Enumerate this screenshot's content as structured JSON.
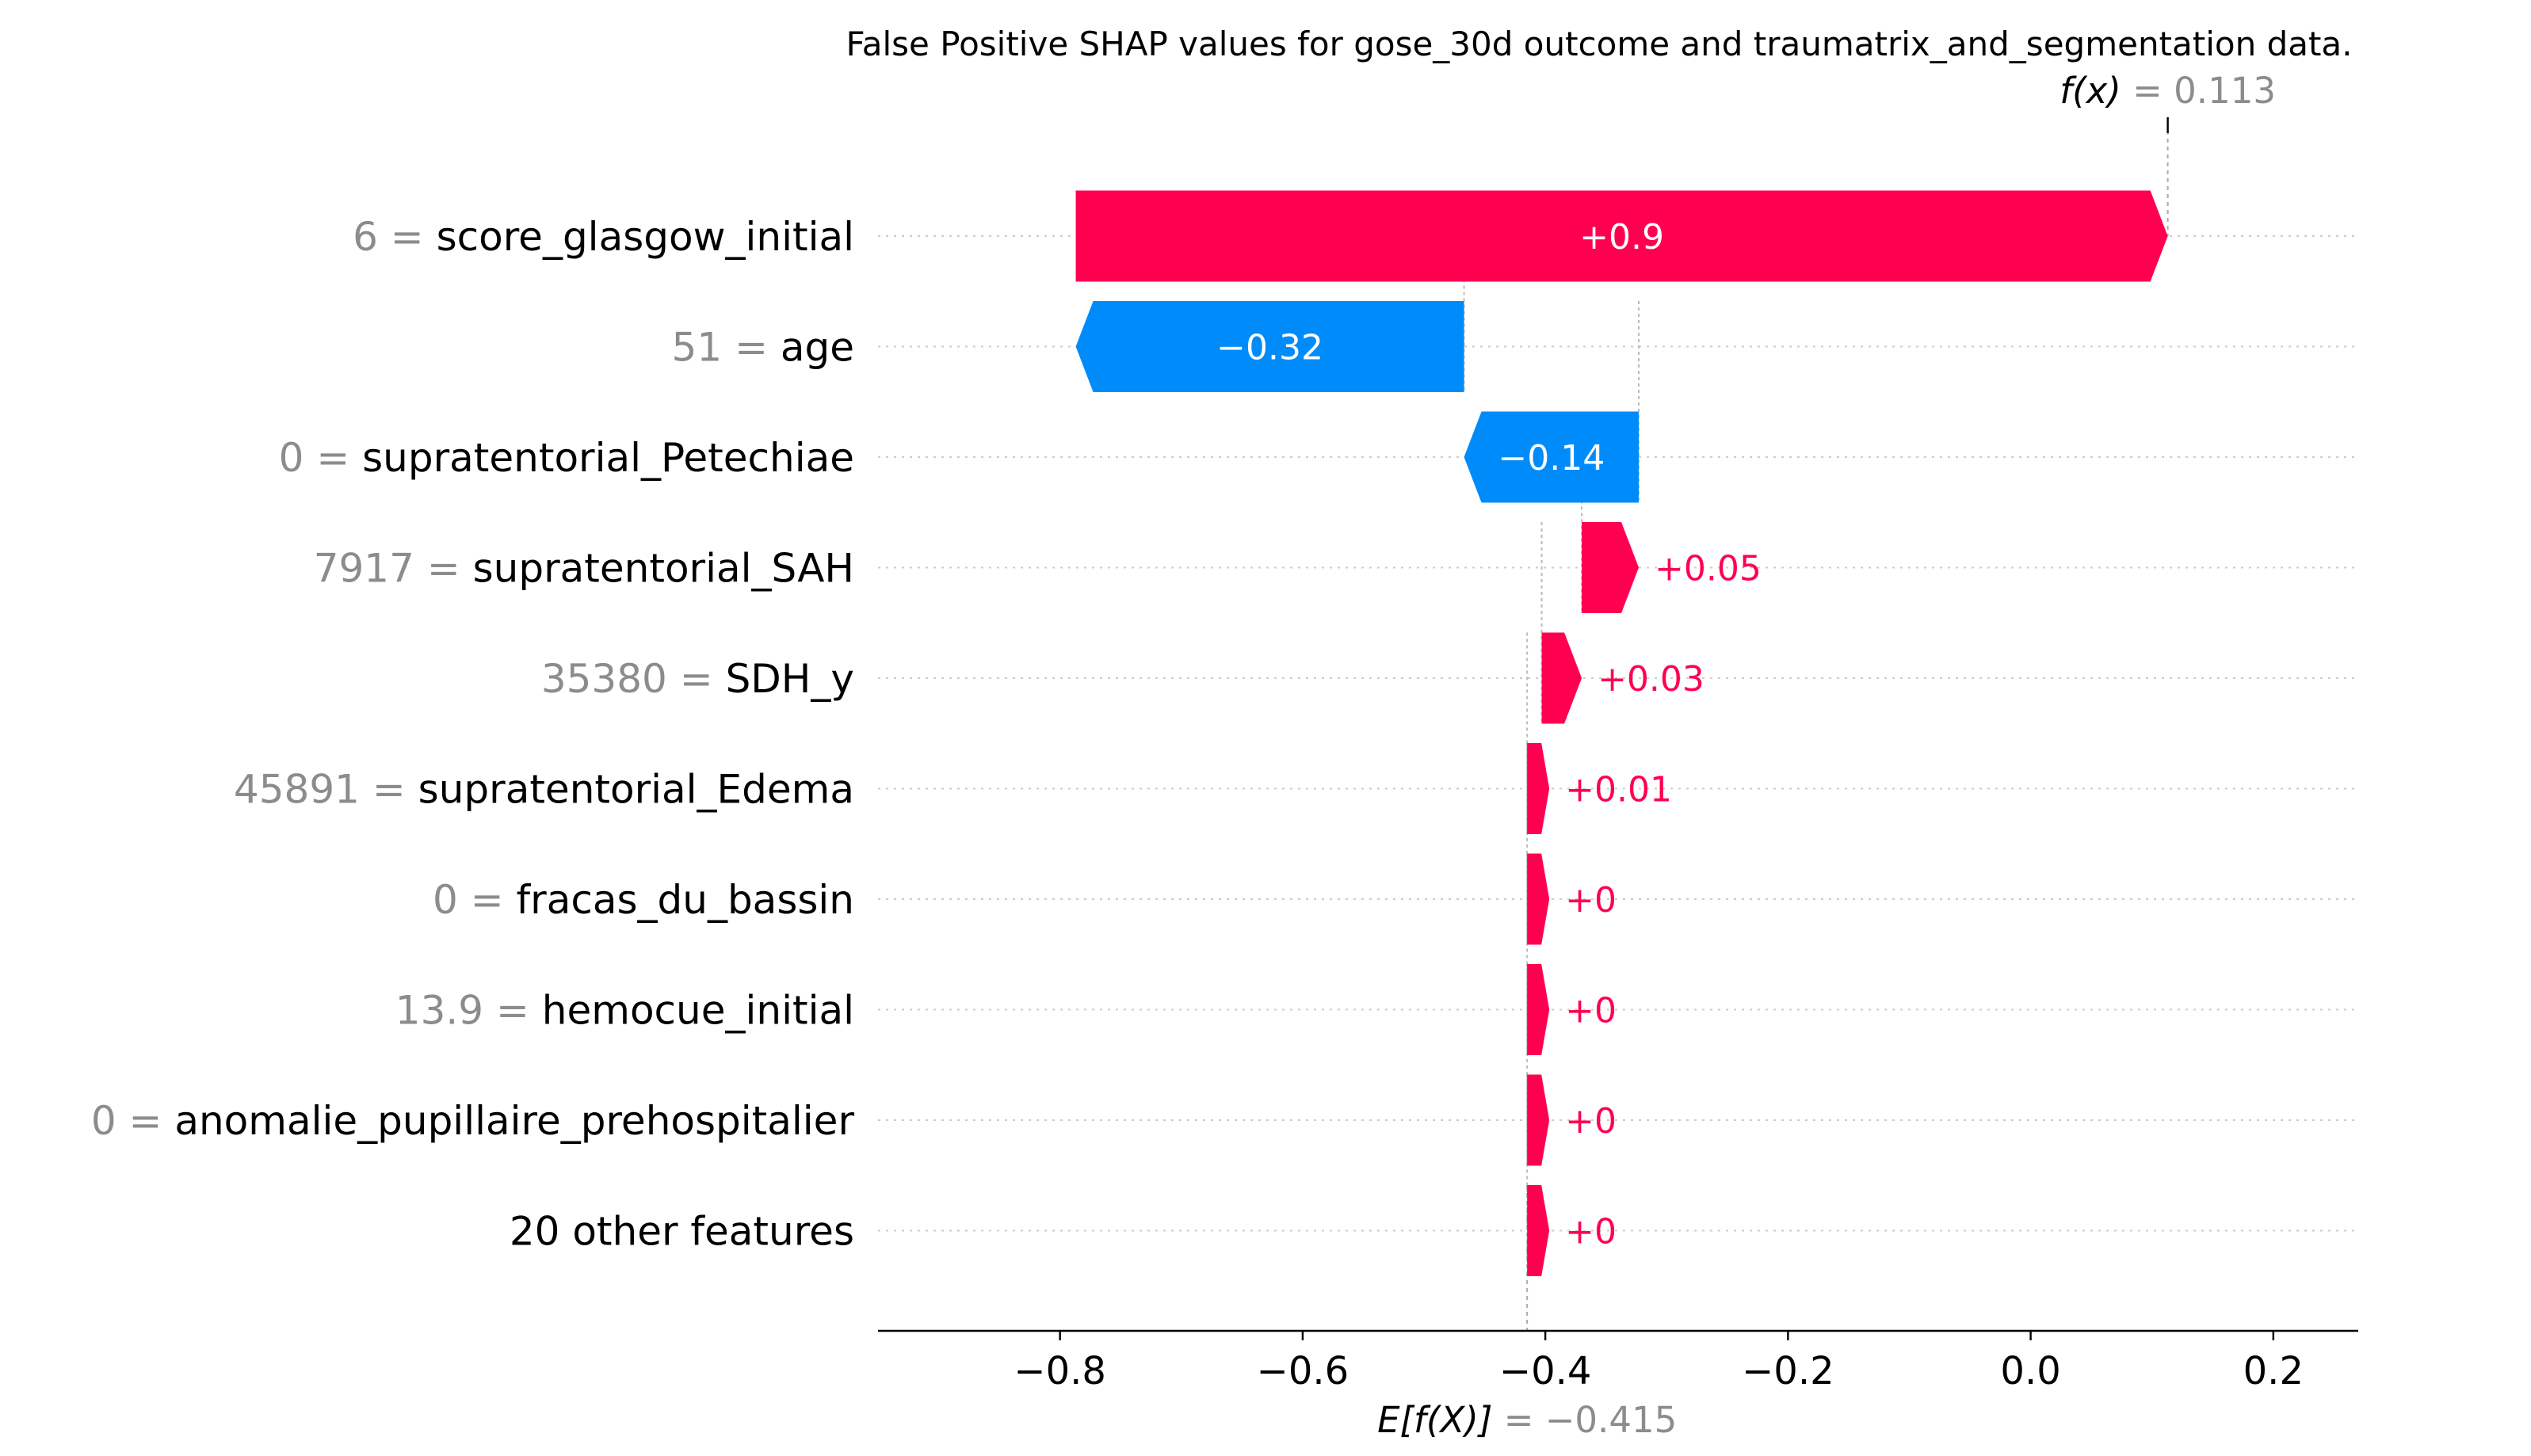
{
  "chart_data": {
    "type": "waterfall",
    "title": "False Positive SHAP values for gose_30d outcome and traumatrix_and_segmentation data.",
    "base_value": {
      "label": "E[f(X)]",
      "value": "−0.415",
      "number": -0.415
    },
    "output_value": {
      "label": "f(x)",
      "value": "0.113",
      "number": 0.113
    },
    "xlim": [
      -0.95,
      0.27
    ],
    "xticks": [
      {
        "value": -0.8,
        "label": "−0.8"
      },
      {
        "value": -0.6,
        "label": "−0.6"
      },
      {
        "value": -0.4,
        "label": "−0.4"
      },
      {
        "value": -0.2,
        "label": "−0.2"
      },
      {
        "value": 0.0,
        "label": "0.0"
      },
      {
        "value": 0.2,
        "label": "0.2"
      }
    ],
    "colors": {
      "positive": "#ff0051",
      "negative": "#008bfb",
      "grid": "#cccccc",
      "muted": "#8c8c8c"
    },
    "features": [
      {
        "value": "6",
        "name": "score_glasgow_initial",
        "shap": 0.9,
        "label": "+0.9",
        "start": -0.787,
        "end": 0.113
      },
      {
        "value": "51",
        "name": "age",
        "shap": -0.32,
        "label": "−0.32",
        "start": -0.467,
        "end": -0.787
      },
      {
        "value": "0",
        "name": "supratentorial_Petechiae",
        "shap": -0.14,
        "label": "−0.14",
        "start": -0.323,
        "end": -0.467
      },
      {
        "value": "7917",
        "name": "supratentorial_SAH",
        "shap": 0.05,
        "label": "+0.05",
        "start": -0.37,
        "end": -0.323
      },
      {
        "value": "35380",
        "name": "SDH_y",
        "shap": 0.03,
        "label": "+0.03",
        "start": -0.403,
        "end": -0.37
      },
      {
        "value": "45891",
        "name": "supratentorial_Edema",
        "shap": 0.01,
        "label": "+0.01",
        "start": -0.415,
        "end": -0.403
      },
      {
        "value": "0",
        "name": "fracas_du_bassin",
        "shap": 0.0,
        "label": "+0",
        "start": -0.415,
        "end": -0.415
      },
      {
        "value": "13.9",
        "name": "hemocue_initial",
        "shap": 0.0,
        "label": "+0",
        "start": -0.415,
        "end": -0.415
      },
      {
        "value": "0",
        "name": "anomalie_pupillaire_prehospitalier",
        "shap": 0.0,
        "label": "+0",
        "start": -0.415,
        "end": -0.415
      },
      {
        "value": "",
        "name": "20 other features",
        "shap": 0.0,
        "label": "+0",
        "start": -0.415,
        "end": -0.415
      }
    ]
  }
}
